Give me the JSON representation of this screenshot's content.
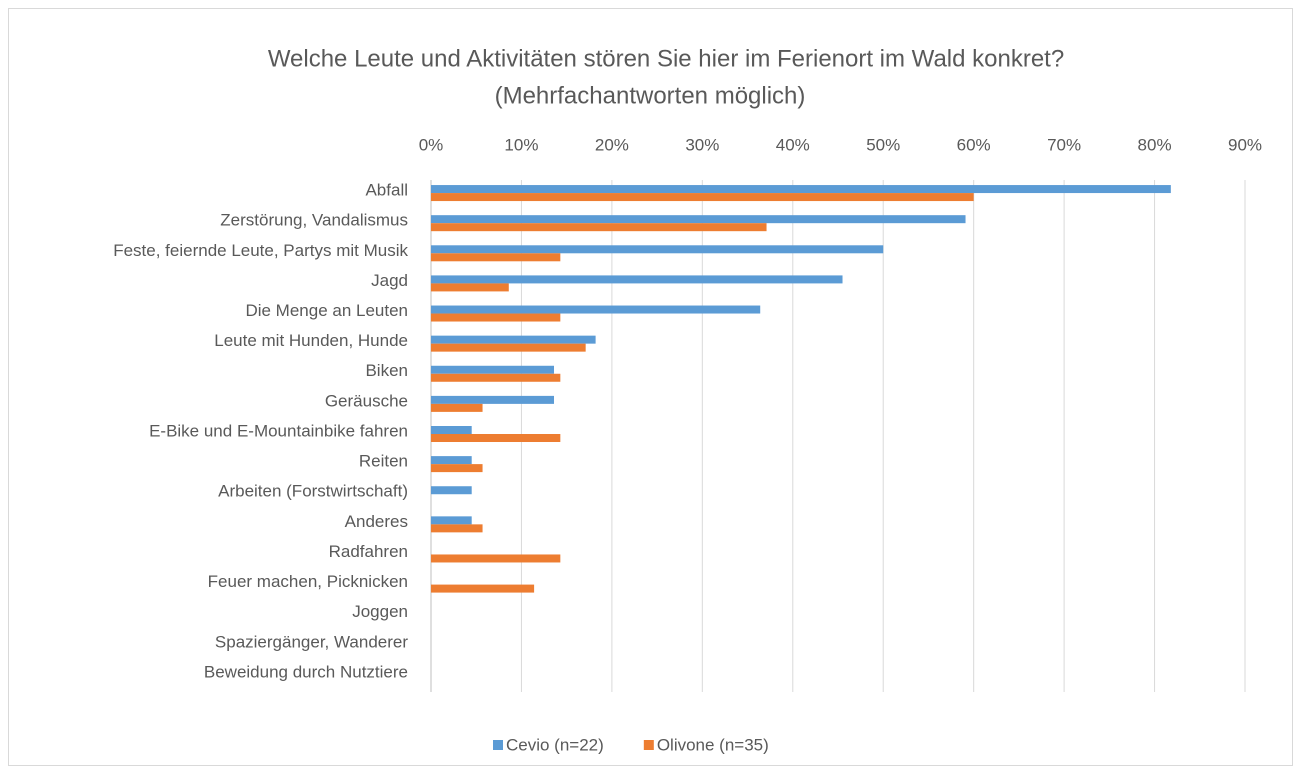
{
  "chart_data": {
    "type": "bar",
    "orientation": "horizontal",
    "title": "Welche Leute und Aktivitäten stören Sie hier im Ferienort im Wald konkret?",
    "subtitle": "(Mehrfachantworten möglich)",
    "categories": [
      "Abfall",
      "Zerstörung, Vandalismus",
      "Feste, feiernde Leute, Partys mit Musik",
      "Jagd",
      "Die Menge an Leuten",
      "Leute mit Hunden, Hunde",
      "Biken",
      "Geräusche",
      "E-Bike und E-Mountainbike fahren",
      "Reiten",
      "Arbeiten (Forstwirtschaft)",
      "Anderes",
      "Radfahren",
      "Feuer machen, Picknicken",
      "Joggen",
      "Spaziergänger, Wanderer",
      "Beweidung durch Nutztiere"
    ],
    "series": [
      {
        "name": "Cevio (n=22)",
        "color": "#5b9bd5",
        "values": [
          81.8,
          59.1,
          50,
          45.5,
          36.4,
          18.2,
          13.6,
          13.6,
          4.5,
          4.5,
          4.5,
          4.5,
          0,
          0,
          0,
          0,
          0
        ]
      },
      {
        "name": "Olivone (n=35)",
        "color": "#ed7d31",
        "values": [
          60,
          37.1,
          14.3,
          8.6,
          14.3,
          17.1,
          14.3,
          5.7,
          14.3,
          5.7,
          0,
          5.7,
          14.3,
          11.4,
          0,
          0,
          0
        ]
      }
    ],
    "xlim": [
      0,
      90
    ],
    "xticks": [
      {
        "value": 0,
        "label": "0%"
      },
      {
        "value": 10,
        "label": "10%"
      },
      {
        "value": 20,
        "label": "20%"
      },
      {
        "value": 30,
        "label": "30%"
      },
      {
        "value": 40,
        "label": "40%"
      },
      {
        "value": 50,
        "label": "50%"
      },
      {
        "value": 60,
        "label": "60%"
      },
      {
        "value": 70,
        "label": "70%"
      },
      {
        "value": 80,
        "label": "80%"
      },
      {
        "value": 90,
        "label": "90%"
      }
    ],
    "grid": true,
    "legend": "bottom"
  }
}
